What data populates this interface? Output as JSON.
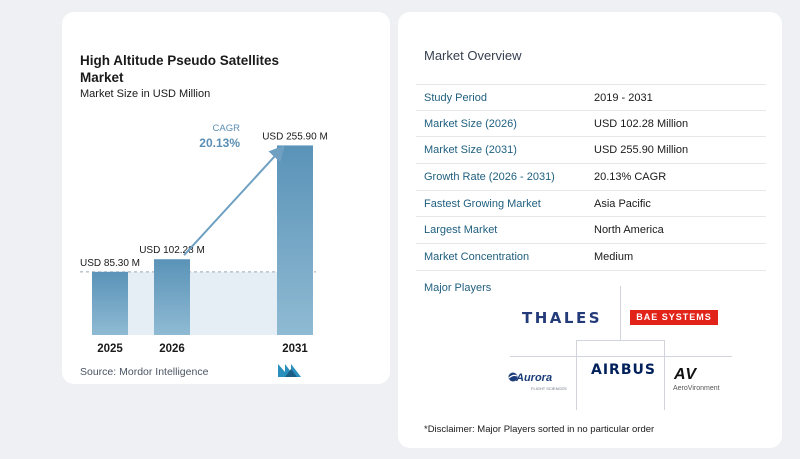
{
  "chart_data": {
    "type": "bar",
    "title": "High Altitude Pseudo Satellites Market",
    "subtitle": "Market Size in USD Million",
    "categories": [
      "2025",
      "2026",
      "2031"
    ],
    "values": [
      85.3,
      102.28,
      255.9
    ],
    "data_labels": [
      "USD 85.30 M",
      "USD 102.28 M",
      "USD 255.90 M"
    ],
    "cagr_label": "CAGR",
    "cagr_value": "20.13%",
    "xlabel": "",
    "ylabel": "",
    "ylim": [
      0,
      270
    ],
    "grid": false,
    "legend": "none",
    "colors": {
      "bar_top": "#5a93b8",
      "bar_bottom": "#8fbad3",
      "band": "#e6eef5",
      "dashed": "#9aa8b4",
      "arrow": "#6fa0c2",
      "cagr": "#5b8fb5"
    }
  },
  "source": {
    "label": "Source:",
    "name": "Mordor Intelligence"
  },
  "overview": {
    "title": "Market Overview",
    "rows": [
      {
        "label": "Study Period",
        "value": "2019 - 2031"
      },
      {
        "label": "Market Size (2026)",
        "value": "USD 102.28 Million"
      },
      {
        "label": "Market Size (2031)",
        "value": "USD 255.90 Million"
      },
      {
        "label": "Growth Rate (2026 - 2031)",
        "value": "20.13% CAGR"
      },
      {
        "label": "Fastest Growing Market",
        "value": "Asia Pacific"
      },
      {
        "label": "Largest Market",
        "value": "North America"
      },
      {
        "label": "Market Concentration",
        "value": "Medium"
      }
    ]
  },
  "players": {
    "title": "Major Players",
    "logos": {
      "thales": "THALES",
      "bae": "BAE SYSTEMS",
      "airbus": "AIRBUS",
      "aurora": "Aurora",
      "aurora_sub": "FLIGHT SCIENCES",
      "av": "AV",
      "av_sub": "AeroVironment"
    }
  },
  "disclaimer": "*Disclaimer: Major Players sorted in no particular order"
}
